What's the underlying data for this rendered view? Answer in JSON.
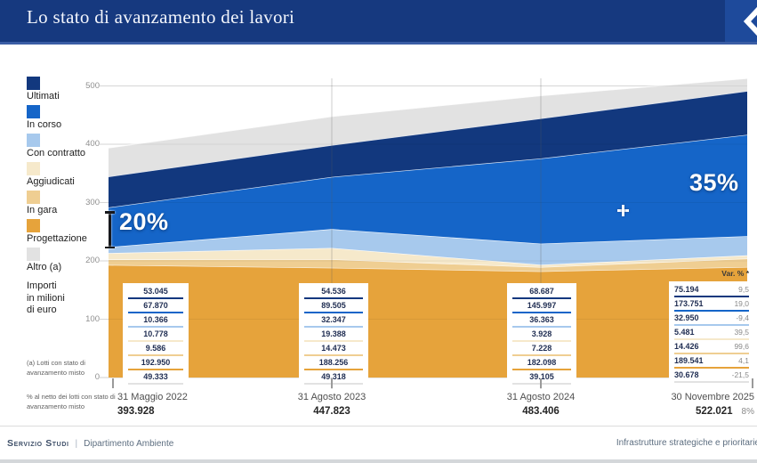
{
  "header": {
    "title": "Lo stato di avanzamento dei lavori"
  },
  "icons": {
    "logo_glyph": "chevron-left",
    "cursor": "crosshair"
  },
  "legend": {
    "items": [
      {
        "label": "Ultimati",
        "color": "#12387e"
      },
      {
        "label": "In corso",
        "color": "#1565c8"
      },
      {
        "label": "Con contratto",
        "color": "#a7c9ed"
      },
      {
        "label": "Aggiudicati",
        "color": "#f6e9cb"
      },
      {
        "label": "In gara",
        "color": "#efce92"
      },
      {
        "label": "Progettazione",
        "color": "#e6a33b"
      },
      {
        "label": "Altro (a)",
        "color": "#e2e2e2"
      }
    ]
  },
  "axis_note": {
    "lines": [
      "Importi",
      "in milioni",
      "di euro"
    ]
  },
  "footnotes": {
    "note_a": "(a) Lotti con stato di avanzamento misto",
    "note_pct": "% al netto dei lotti con stato di avanzamento misto"
  },
  "annotations": {
    "left_pct": "20%",
    "right_pct": "35%"
  },
  "chart_data": {
    "type": "area",
    "stacked": true,
    "grid": true,
    "x_labels": [
      "31 Maggio 2022",
      "31 Agosto 2023",
      "31 Agosto 2024",
      "30 Novembre 2025"
    ],
    "totals": [
      "393.928",
      "447.823",
      "483.406",
      "522.021"
    ],
    "total_var": "8%",
    "var_header": "Var. % *",
    "ylim": [
      0,
      500
    ],
    "yticks": [
      500,
      400,
      300,
      200,
      100,
      0
    ],
    "series": [
      {
        "name": "Ultimati",
        "color": "#12387e",
        "values": [
          53.045,
          54.536,
          68.687,
          75.194
        ],
        "labels": [
          "53.045",
          "54.536",
          "68.687",
          "75.194"
        ],
        "var_pct": "9,5"
      },
      {
        "name": "In corso",
        "color": "#1565c8",
        "values": [
          67.87,
          89.505,
          145.997,
          173.751
        ],
        "labels": [
          "67.870",
          "89.505",
          "145.997",
          "173.751"
        ],
        "var_pct": "19,0"
      },
      {
        "name": "Con contratto",
        "color": "#a7c9ed",
        "values": [
          10.366,
          32.347,
          36.363,
          32.95
        ],
        "labels": [
          "10.366",
          "32.347",
          "36.363",
          "32.950"
        ],
        "var_pct": "-9,4"
      },
      {
        "name": "Aggiudicati",
        "color": "#f6e9cb",
        "values": [
          10.778,
          19.388,
          3.928,
          5.481
        ],
        "labels": [
          "10.778",
          "19.388",
          "3.928",
          "5.481"
        ],
        "var_pct": "39,5"
      },
      {
        "name": "In gara",
        "color": "#efce92",
        "values": [
          9.586,
          14.473,
          7.228,
          14.426
        ],
        "labels": [
          "9.586",
          "14.473",
          "7.228",
          "14.426"
        ],
        "var_pct": "99,6"
      },
      {
        "name": "Progettazione",
        "color": "#e6a33b",
        "values": [
          192.95,
          188.256,
          182.098,
          189.541
        ],
        "labels": [
          "192.950",
          "188.256",
          "182.098",
          "189.541"
        ],
        "var_pct": "4,1"
      },
      {
        "name": "Altro (a)",
        "color": "#e2e2e2",
        "values": [
          49.333,
          49.318,
          39.105,
          30.678
        ],
        "labels": [
          "49.333",
          "49.318",
          "39.105",
          "30.678"
        ],
        "var_pct": "-21,5"
      }
    ],
    "stack_order_bottom_to_top": [
      "Progettazione",
      "In gara",
      "Aggiudicati",
      "Con contratto",
      "In corso",
      "Ultimati",
      "Altro (a)"
    ]
  },
  "footer": {
    "left_brand": "Servizio Studi",
    "left_dept": "Dipartimento Ambiente",
    "right": "Infrastrutture strategiche e prioritarie"
  }
}
